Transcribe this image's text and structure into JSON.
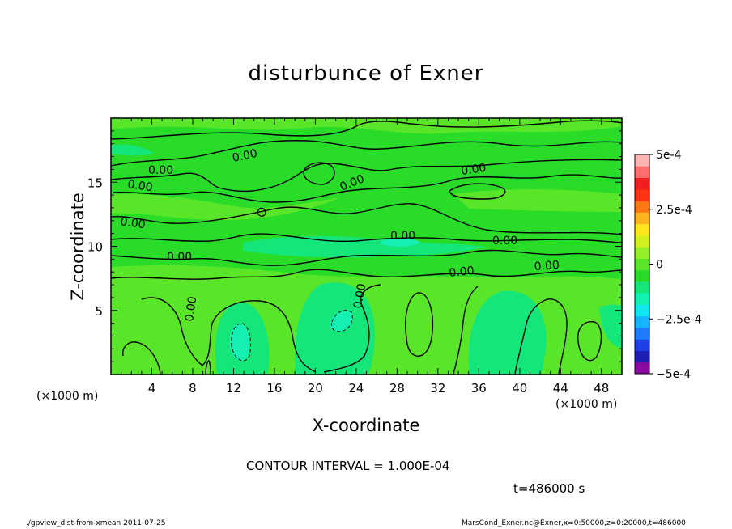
{
  "chart_data": {
    "type": "heatmap",
    "title": "disturbunce of Exner",
    "xlabel": "X-coordinate",
    "ylabel": "Z-coordinate",
    "x_unit": "(×1000 m)",
    "y_unit": "(×1000 m)",
    "xlim": [
      0,
      50
    ],
    "ylim": [
      0,
      20
    ],
    "x_ticks": [
      4,
      8,
      12,
      16,
      20,
      24,
      28,
      32,
      36,
      40,
      44,
      48
    ],
    "y_ticks": [
      5,
      10,
      15
    ],
    "colorbar": {
      "min": -0.0005,
      "max": 0.0005,
      "tick_values": [
        0.0005,
        0.00025,
        0,
        -0.00025,
        -0.0005
      ],
      "tick_labels": [
        "5e-4",
        "2.5e-4",
        "0",
        "−2.5e-4",
        "−5e-4"
      ],
      "colors": [
        "#8a0aa0",
        "#1e1eb4",
        "#1e40e6",
        "#1e7cff",
        "#14b4ff",
        "#14e6f0",
        "#14f0b4",
        "#14e67a",
        "#28dc28",
        "#5ae628",
        "#96f028",
        "#d2f01e",
        "#ffe61e",
        "#ffb41e",
        "#ff7814",
        "#ff3214",
        "#f01e1e",
        "#ff6e6e",
        "#ffb4b4"
      ]
    },
    "contour_interval": "1.000E-04",
    "contour_level_labels": [
      "0.00",
      "0.00",
      "0.00",
      "0.00",
      "0.00",
      "0.00",
      "0.00",
      "0.00",
      "0.00",
      "0.00",
      "0.00",
      "0.00",
      "0.00",
      "0.00"
    ],
    "time": "t=486000 s"
  },
  "annotations": {
    "contour_text": "CONTOUR INTERVAL = 1.000E-04",
    "footer_left": "./gpview_dist-from-xmean  2011-07-25",
    "footer_right": "MarsCond_Exner.nc@Exner,x=0:50000,z=0:20000,t=486000"
  },
  "colors": {
    "background_field": "#28dc28",
    "light_field": "#5ae628",
    "cool_field": "#14e67a",
    "cooler_field": "#14f0b4"
  }
}
